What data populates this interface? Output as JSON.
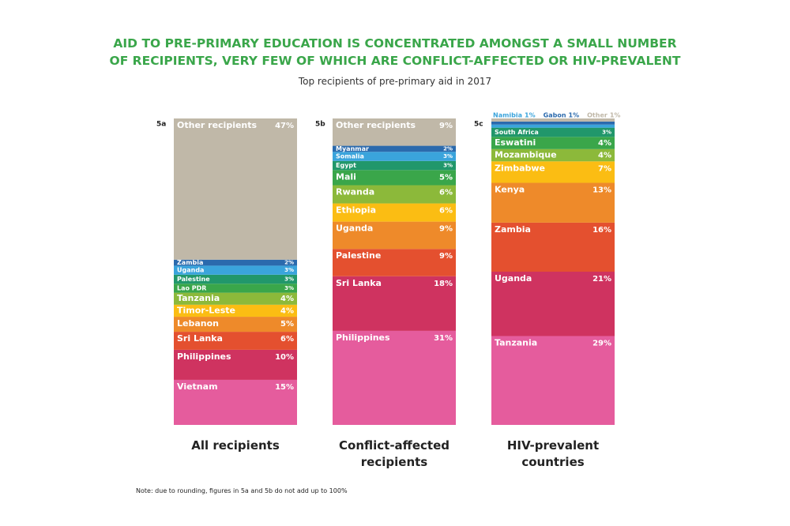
{
  "title": [
    "AID TO PRE-PRIMARY EDUCATION IS CONCENTRATED AMONGST A SMALL NUMBER",
    "OF RECIPIENTS, VERY FEW OF WHICH ARE CONFLICT-AFFECTED OR HIV-PREVALENT"
  ],
  "subtitle": "Top recipients of pre-primary aid in 2017",
  "note": "Note: due to rounding, figures in 5a and 5b do not add up to 100%",
  "chart_data": [
    {
      "type": "stacked-column",
      "label": "5a",
      "title": "All recipients",
      "series": [
        {
          "name": "Vietnam",
          "color": "#e55c9d",
          "values": [
            15
          ],
          "value_labels": [
            "15%"
          ]
        },
        {
          "name": "Philippines",
          "color": "#cf3360",
          "values": [
            10
          ],
          "value_labels": [
            "10%"
          ]
        },
        {
          "name": "Sri Lanka",
          "color": "#e4502f",
          "values": [
            6
          ],
          "value_labels": [
            "6%"
          ]
        },
        {
          "name": "Lebanon",
          "color": "#ee8a2a",
          "values": [
            5
          ],
          "value_labels": [
            "5%"
          ]
        },
        {
          "name": "Timor-Leste",
          "color": "#fbbd13",
          "values": [
            4
          ],
          "value_labels": [
            "4%"
          ]
        },
        {
          "name": "Tanzania",
          "color": "#8cb93a",
          "values": [
            4
          ],
          "value_labels": [
            "4%"
          ]
        },
        {
          "name": "Lao PDR",
          "color": "#3aa64a",
          "values": [
            3
          ],
          "value_labels": [
            "3%"
          ]
        },
        {
          "name": "Palestine",
          "color": "#21976b",
          "values": [
            3
          ],
          "value_labels": [
            "3%"
          ]
        },
        {
          "name": "Uganda",
          "color": "#3aa4dc",
          "values": [
            3
          ],
          "value_labels": [
            "3%"
          ]
        },
        {
          "name": "Zambia",
          "color": "#2b6aad",
          "values": [
            2
          ],
          "value_labels": [
            "2%"
          ]
        },
        {
          "name": "Other recipients",
          "color": "#c0b8a8",
          "values": [
            47
          ],
          "value_labels": [
            "47%"
          ]
        }
      ]
    },
    {
      "type": "stacked-column",
      "label": "5b",
      "title": "Conflict-affected recipients",
      "series": [
        {
          "name": "Philippines",
          "color": "#e55c9d",
          "values": [
            31
          ],
          "value_labels": [
            "31%"
          ]
        },
        {
          "name": "Sri Lanka",
          "color": "#cf3360",
          "values": [
            18
          ],
          "value_labels": [
            "18%"
          ]
        },
        {
          "name": "Palestine",
          "color": "#e4502f",
          "values": [
            9
          ],
          "value_labels": [
            "9%"
          ]
        },
        {
          "name": "Uganda",
          "color": "#ee8a2a",
          "values": [
            9
          ],
          "value_labels": [
            "9%"
          ]
        },
        {
          "name": "Ethiopia",
          "color": "#fbbd13",
          "values": [
            6
          ],
          "value_labels": [
            "6%"
          ]
        },
        {
          "name": "Rwanda",
          "color": "#8cb93a",
          "values": [
            6
          ],
          "value_labels": [
            "6%"
          ]
        },
        {
          "name": "Mali",
          "color": "#3aa64a",
          "values": [
            5
          ],
          "value_labels": [
            "5%"
          ]
        },
        {
          "name": "Egypt",
          "color": "#21976b",
          "values": [
            3
          ],
          "value_labels": [
            "3%"
          ]
        },
        {
          "name": "Somalia",
          "color": "#3aa4dc",
          "values": [
            3
          ],
          "value_labels": [
            "3%"
          ]
        },
        {
          "name": "Myanmar",
          "color": "#2b6aad",
          "values": [
            2
          ],
          "value_labels": [
            "2%"
          ]
        },
        {
          "name": "Other recipients",
          "color": "#c0b8a8",
          "values": [
            9
          ],
          "value_labels": [
            "9%"
          ]
        }
      ]
    },
    {
      "type": "stacked-column",
      "label": "5c",
      "title": "HIV-prevalent countries",
      "series": [
        {
          "name": "Tanzania",
          "color": "#e55c9d",
          "values": [
            29
          ],
          "value_labels": [
            "29%"
          ]
        },
        {
          "name": "Uganda",
          "color": "#cf3360",
          "values": [
            21
          ],
          "value_labels": [
            "21%"
          ]
        },
        {
          "name": "Zambia",
          "color": "#e4502f",
          "values": [
            16
          ],
          "value_labels": [
            "16%"
          ]
        },
        {
          "name": "Kenya",
          "color": "#ee8a2a",
          "values": [
            13
          ],
          "value_labels": [
            "13%"
          ]
        },
        {
          "name": "Zimbabwe",
          "color": "#fbbd13",
          "values": [
            7
          ],
          "value_labels": [
            "7%"
          ]
        },
        {
          "name": "Mozambique",
          "color": "#8cb93a",
          "values": [
            4
          ],
          "value_labels": [
            "4%"
          ]
        },
        {
          "name": "Eswatini",
          "color": "#3aa64a",
          "values": [
            4
          ],
          "value_labels": [
            "4%"
          ]
        },
        {
          "name": "South Africa",
          "color": "#21976b",
          "values": [
            3
          ],
          "value_labels": [
            "3%"
          ]
        },
        {
          "name": "Namibia",
          "color": "#3aa4dc",
          "values": [
            1
          ],
          "value_labels": [
            "1%"
          ]
        },
        {
          "name": "Gabon",
          "color": "#2b6aad",
          "values": [
            1
          ],
          "value_labels": [
            "1%"
          ]
        },
        {
          "name": "Other",
          "color": "#c0b8a8",
          "values": [
            1
          ],
          "value_labels": [
            "1%"
          ]
        }
      ]
    }
  ]
}
